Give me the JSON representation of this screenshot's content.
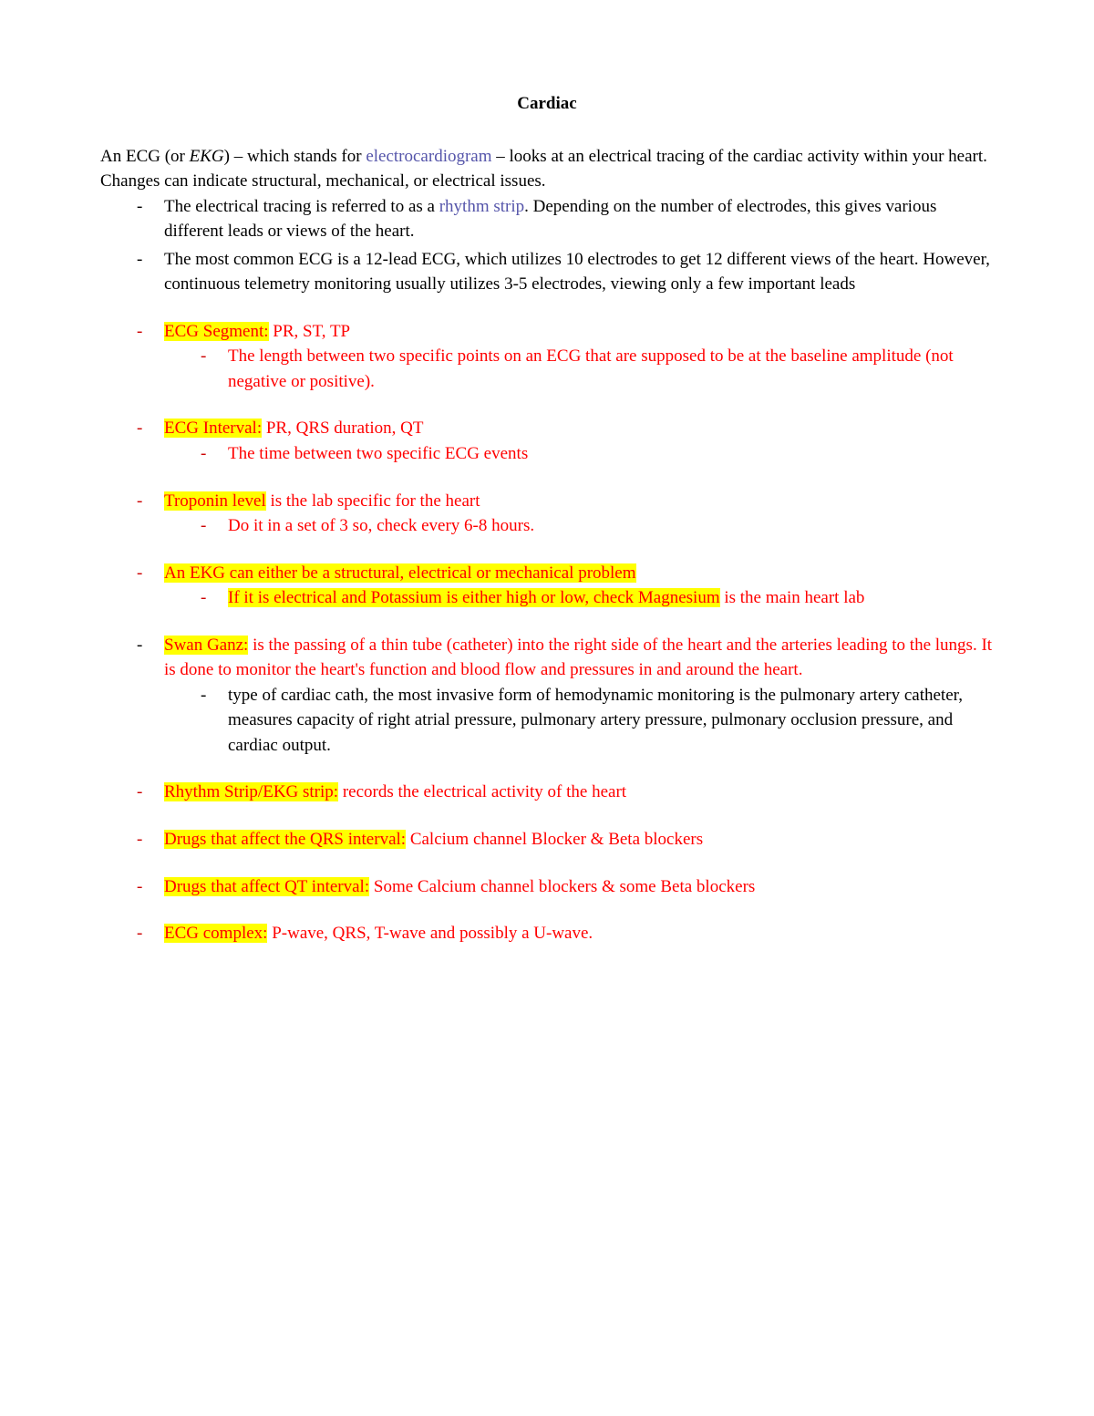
{
  "title": "Cardiac",
  "intro": {
    "p1a": "An ECG (or ",
    "p1b": "EKG",
    "p1c": ") – which stands for ",
    "p1d": "electrocardiogram",
    "p1e": " – looks at an electrical tracing of the cardiac activity within your heart. Changes can indicate structural, mechanical, or electrical issues."
  },
  "bullets_intro": {
    "b1a": "The electrical tracing is referred to as a ",
    "b1b": "rhythm strip",
    "b1c": ". Depending on the number of electrodes, this gives various different leads or views of the heart.",
    "b2": "The most common ECG is a 12-lead ECG, which utilizes 10 electrodes to get 12 different views of the heart. However, continuous telemetry monitoring usually utilizes 3-5 electrodes, viewing only a few important leads"
  },
  "seg": {
    "label": "ECG Segment:",
    "text": " PR, ST, TP",
    "sub": "The length between two specific points on an ECG that are supposed to be at the baseline amplitude (not negative or positive)."
  },
  "interval": {
    "label": "ECG Interval:",
    "text": " PR, QRS duration, QT",
    "sub": "The time between two specific ECG events"
  },
  "troponin": {
    "label": "Troponin level",
    "text": " is the lab specific for the heart",
    "sub": "Do it in a set of 3 so, check every 6-8 hours."
  },
  "structural": {
    "line": "An EKG can either be a structural, electrical or mechanical problem",
    "sub_hl": "If it is electrical and Potassium is either high or low, check Magnesium",
    "sub_rest": " is the main heart lab"
  },
  "swan": {
    "label": "Swan Ganz:",
    "text": " is the passing of a thin tube (catheter) into the right side of the heart and the arteries leading to the lungs. It is done to monitor the heart's function and blood flow and pressures in and around the heart.",
    "sub": "type of cardiac cath, the most invasive form of hemodynamic monitoring is the pulmonary artery catheter, measures capacity of right atrial pressure, pulmonary artery pressure, pulmonary occlusion pressure, and cardiac output."
  },
  "rhythm": {
    "label": "Rhythm Strip/EKG strip:",
    "text": " records the electrical activity of the heart"
  },
  "qrs_drugs": {
    "label": "Drugs that affect the QRS interval:",
    "text": " Calcium channel Blocker & Beta blockers"
  },
  "qt_drugs": {
    "label": "Drugs that affect QT interval:",
    "text": " Some Calcium channel blockers & some Beta blockers"
  },
  "complex": {
    "label": "ECG complex:",
    "text": "  P-wave, QRS, T-wave and possibly a U-wave."
  },
  "colors": {
    "highlight": "#ffff00",
    "red": "#ff0000",
    "link": "#5555aa",
    "text": "#000000",
    "background": "#ffffff"
  }
}
